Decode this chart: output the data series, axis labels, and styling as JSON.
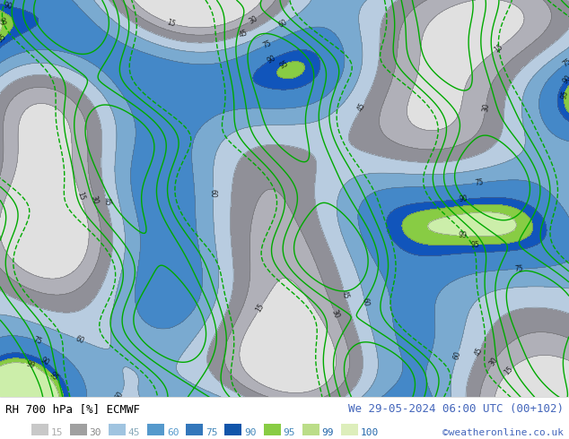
{
  "title_left": "RH 700 hPa [%] ECMWF",
  "title_right": "We 29-05-2024 06:00 UTC (00+102)",
  "copyright": "©weatheronline.co.uk",
  "legend_values": [
    "15",
    "30",
    "45",
    "60",
    "75",
    "90",
    "95",
    "99",
    "100"
  ],
  "legend_colors": [
    "#c8c8c8",
    "#a0a0a0",
    "#a0c4e0",
    "#5599cc",
    "#3377bb",
    "#1155aa",
    "#88cc44",
    "#bbdd88",
    "#ddeebb"
  ],
  "legend_text_colors": [
    "#aaaaaa",
    "#888888",
    "#88aabb",
    "#5599cc",
    "#4488bb",
    "#4488bb",
    "#4488bb",
    "#2266aa",
    "#2266aa"
  ],
  "fig_width": 6.34,
  "fig_height": 4.9,
  "dpi": 100,
  "map_colors": [
    "#e8e8e8",
    "#c8c8c8",
    "#a0a0a8",
    "#c0d4e8",
    "#a0c0e0",
    "#80a8d8",
    "#5588cc",
    "#3366bb",
    "#1144aa",
    "#0033aa",
    "#88cc44",
    "#bbdd88",
    "#ddeebb"
  ],
  "title_color_left": "#000000",
  "title_color_right": "#4466bb",
  "copyright_color": "#4466bb",
  "title_fontsize": 9,
  "legend_fontsize": 8,
  "copyright_fontsize": 8
}
